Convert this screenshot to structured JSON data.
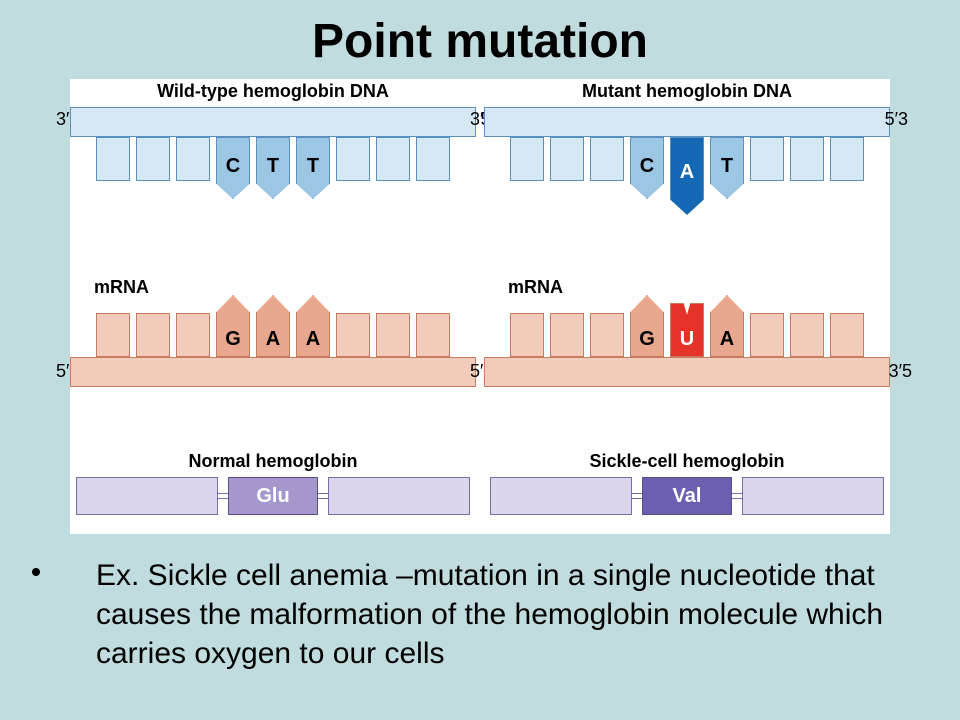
{
  "title": "Point mutation",
  "colors": {
    "page_bg": "#c0dcde",
    "diagram_bg": "#ffffff",
    "dna_strand": "#d7e8f5",
    "dna_border": "#5a8fbf",
    "dna_labeled": "#9bc6e4",
    "dna_mutant": "#1468b4",
    "mrna_strand": "#f3cbbb",
    "mrna_border": "#c77b5f",
    "mrna_labeled": "#e9a78d",
    "mrna_mutant": "#e6332a",
    "protein_box": "#dcd6ed",
    "protein_border": "#7a6ea6",
    "aa_normal": "#a596cc",
    "aa_mutant": "#6d5fb0"
  },
  "left": {
    "dna_title": "Wild-type hemoglobin DNA",
    "dna_prime_left": "3′",
    "dna_prime_right": "5′",
    "dna_bases": [
      {
        "letter": "",
        "labeled": false,
        "mutant": false
      },
      {
        "letter": "",
        "labeled": false,
        "mutant": false
      },
      {
        "letter": "",
        "labeled": false,
        "mutant": false
      },
      {
        "letter": "C",
        "labeled": true,
        "mutant": false
      },
      {
        "letter": "T",
        "labeled": true,
        "mutant": false
      },
      {
        "letter": "T",
        "labeled": true,
        "mutant": false
      },
      {
        "letter": "",
        "labeled": false,
        "mutant": false
      },
      {
        "letter": "",
        "labeled": false,
        "mutant": false
      },
      {
        "letter": "",
        "labeled": false,
        "mutant": false
      }
    ],
    "mrna_label": "mRNA",
    "mrna_prime_left": "5′",
    "mrna_prime_right": "3′",
    "mrna_bases": [
      {
        "letter": "",
        "labeled": false,
        "mutant": false
      },
      {
        "letter": "",
        "labeled": false,
        "mutant": false
      },
      {
        "letter": "",
        "labeled": false,
        "mutant": false
      },
      {
        "letter": "G",
        "labeled": true,
        "mutant": false
      },
      {
        "letter": "A",
        "labeled": true,
        "mutant": false
      },
      {
        "letter": "A",
        "labeled": true,
        "mutant": false
      },
      {
        "letter": "",
        "labeled": false,
        "mutant": false
      },
      {
        "letter": "",
        "labeled": false,
        "mutant": false
      },
      {
        "letter": "",
        "labeled": false,
        "mutant": false
      }
    ],
    "protein_title": "Normal hemoglobin",
    "amino_acid": "Glu"
  },
  "right": {
    "dna_title": "Mutant hemoglobin DNA",
    "dna_prime_left": "3′",
    "dna_prime_right": "5′3",
    "dna_bases": [
      {
        "letter": "",
        "labeled": false,
        "mutant": false
      },
      {
        "letter": "",
        "labeled": false,
        "mutant": false
      },
      {
        "letter": "",
        "labeled": false,
        "mutant": false
      },
      {
        "letter": "C",
        "labeled": true,
        "mutant": false
      },
      {
        "letter": "A",
        "labeled": true,
        "mutant": true
      },
      {
        "letter": "T",
        "labeled": true,
        "mutant": false
      },
      {
        "letter": "",
        "labeled": false,
        "mutant": false
      },
      {
        "letter": "",
        "labeled": false,
        "mutant": false
      },
      {
        "letter": "",
        "labeled": false,
        "mutant": false
      }
    ],
    "mrna_label": "mRNA",
    "mrna_prime_left": "5′",
    "mrna_prime_right": "3′5",
    "mrna_bases": [
      {
        "letter": "",
        "labeled": false,
        "mutant": false
      },
      {
        "letter": "",
        "labeled": false,
        "mutant": false
      },
      {
        "letter": "",
        "labeled": false,
        "mutant": false
      },
      {
        "letter": "G",
        "labeled": true,
        "mutant": false
      },
      {
        "letter": "U",
        "labeled": true,
        "mutant": true
      },
      {
        "letter": "A",
        "labeled": true,
        "mutant": false
      },
      {
        "letter": "",
        "labeled": false,
        "mutant": false
      },
      {
        "letter": "",
        "labeled": false,
        "mutant": false
      },
      {
        "letter": "",
        "labeled": false,
        "mutant": false
      }
    ],
    "protein_title": "Sickle-cell hemoglobin",
    "amino_acid": "Val"
  },
  "bullet_text": "Ex. Sickle cell anemia –mutation in a single nucleotide that causes the malformation of the hemoglobin molecule which carries oxygen to our cells"
}
